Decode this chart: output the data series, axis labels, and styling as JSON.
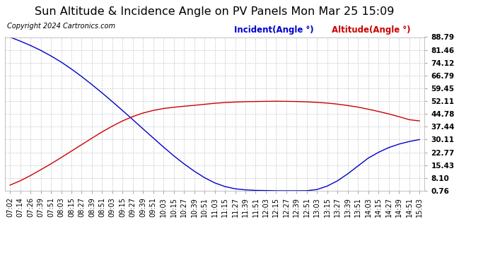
{
  "title": "Sun Altitude & Incidence Angle on PV Panels Mon Mar 25 15:09",
  "copyright": "Copyright 2024 Cartronics.com",
  "legend_incident": "Incident(Angle °)",
  "legend_altitude": "Altitude(Angle °)",
  "incident_color": "#0000cc",
  "altitude_color": "#cc0000",
  "background_color": "#ffffff",
  "grid_color": "#bbbbbb",
  "yticks": [
    0.76,
    8.1,
    15.43,
    22.77,
    30.11,
    37.44,
    44.78,
    52.11,
    59.45,
    66.79,
    74.12,
    81.46,
    88.79
  ],
  "xtick_labels": [
    "07:02",
    "07:14",
    "07:26",
    "07:39",
    "07:51",
    "08:03",
    "08:15",
    "08:27",
    "08:39",
    "08:51",
    "09:03",
    "09:15",
    "09:27",
    "09:39",
    "09:51",
    "10:03",
    "10:15",
    "10:27",
    "10:39",
    "10:51",
    "11:03",
    "11:15",
    "11:27",
    "11:39",
    "11:51",
    "12:03",
    "12:15",
    "12:27",
    "12:39",
    "12:51",
    "13:03",
    "13:15",
    "13:27",
    "13:39",
    "13:51",
    "14:03",
    "14:15",
    "14:27",
    "14:39",
    "14:51",
    "15:03"
  ],
  "incident_y": [
    88.79,
    86.5,
    84.0,
    81.2,
    78.0,
    74.5,
    70.5,
    66.2,
    61.6,
    56.8,
    51.8,
    46.7,
    41.5,
    36.2,
    31.0,
    25.8,
    20.8,
    16.2,
    12.0,
    8.3,
    5.3,
    3.2,
    1.9,
    1.3,
    1.0,
    0.9,
    0.78,
    0.76,
    0.78,
    0.82,
    1.5,
    3.5,
    6.5,
    10.5,
    15.0,
    19.5,
    22.8,
    25.5,
    27.5,
    29.0,
    30.11
  ],
  "altitude_y": [
    4.0,
    6.5,
    9.5,
    12.8,
    16.2,
    19.8,
    23.5,
    27.2,
    30.9,
    34.5,
    37.8,
    40.8,
    43.3,
    45.3,
    46.8,
    47.9,
    48.6,
    49.2,
    49.7,
    50.3,
    50.9,
    51.3,
    51.6,
    51.8,
    51.9,
    52.0,
    52.05,
    52.0,
    51.9,
    51.7,
    51.4,
    51.0,
    50.4,
    49.6,
    48.7,
    47.5,
    46.2,
    44.8,
    43.2,
    41.5,
    40.8
  ],
  "ylim_min": 0.76,
  "ylim_max": 88.79,
  "title_fontsize": 11.5,
  "legend_fontsize": 8.5,
  "tick_fontsize": 7.5,
  "copyright_fontsize": 7
}
